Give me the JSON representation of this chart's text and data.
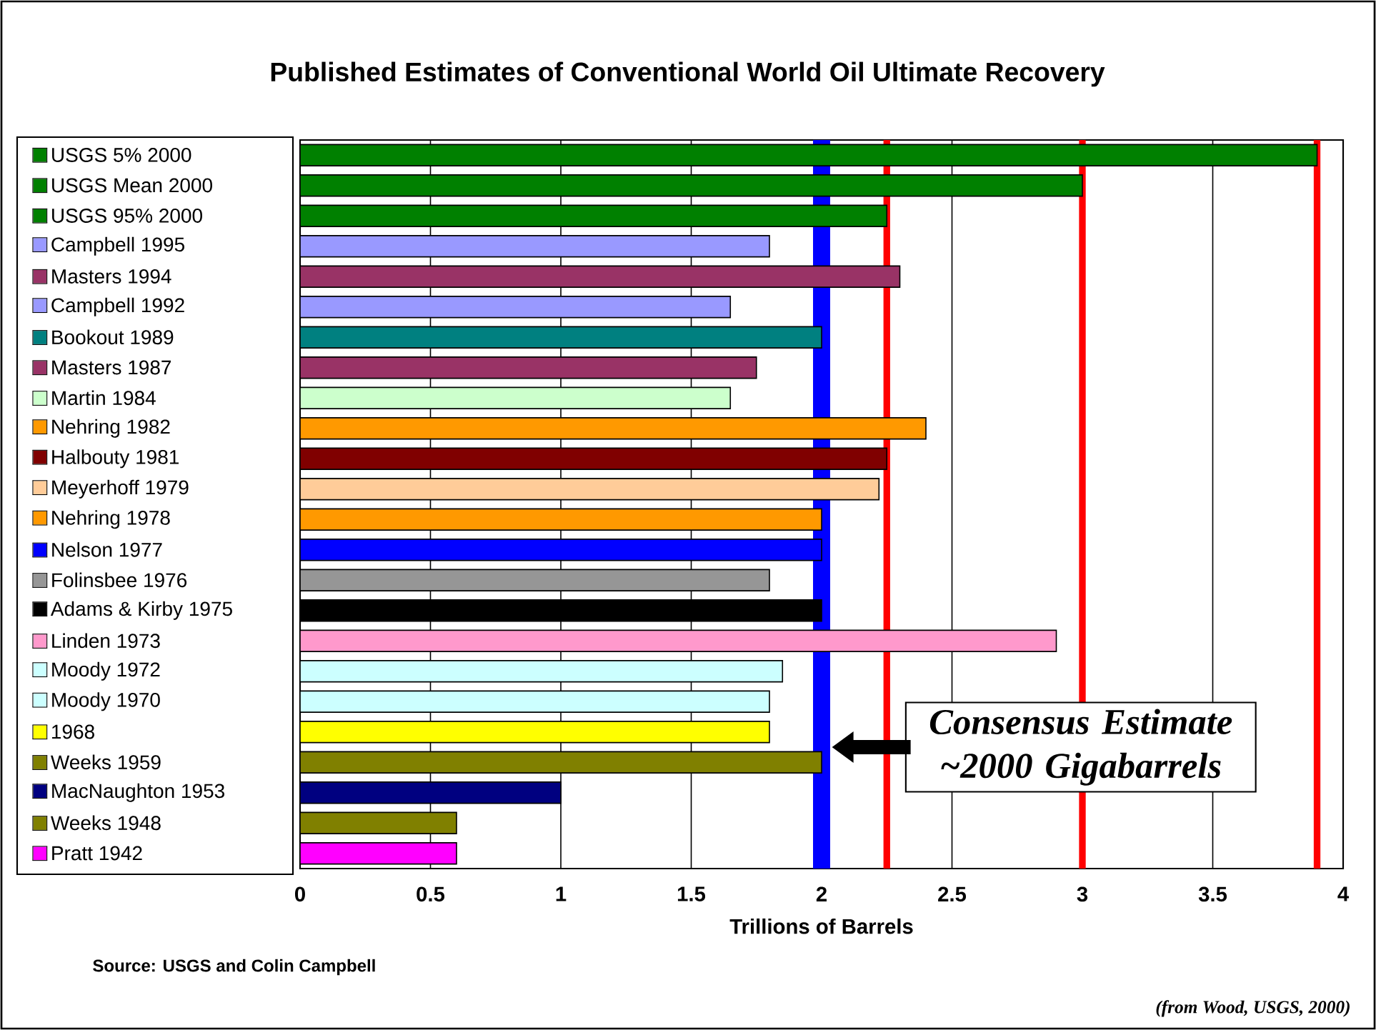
{
  "chart_data": {
    "type": "bar",
    "orientation": "horizontal",
    "title": "Published Estimates of Conventional World Oil Ultimate Recovery",
    "xlabel": "Trillions of Barrels",
    "categories": [
      "USGS 5% 2000",
      "USGS Mean 2000",
      "USGS 95% 2000",
      "Campbell 1995",
      "Masters 1994",
      "Campbell 1992",
      "Bookout 1989",
      "Masters 1987",
      "Martin 1984",
      "Nehring 1982",
      "Halbouty 1981",
      "Meyerhoff 1979",
      "Nehring 1978",
      "Nelson 1977",
      "Folinsbee 1976",
      "Adams & Kirby 1975",
      "Linden 1973",
      "Moody 1972",
      "Moody 1970",
      "1968",
      "Weeks 1959",
      "MacNaughton 1953",
      "Weeks 1948",
      "Pratt 1942"
    ],
    "values": [
      3.9,
      3.0,
      2.25,
      1.8,
      2.3,
      1.65,
      2.0,
      1.75,
      1.65,
      2.4,
      2.25,
      2.22,
      2.0,
      2.0,
      1.8,
      2.0,
      2.9,
      1.85,
      1.8,
      1.8,
      2.0,
      1.0,
      0.6,
      0.6
    ],
    "colors": [
      "#008000",
      "#008000",
      "#008000",
      "#9999ff",
      "#993366",
      "#9999ff",
      "#008080",
      "#993366",
      "#ccffcc",
      "#ff9900",
      "#800000",
      "#ffcc99",
      "#ff9900",
      "#0000ff",
      "#969696",
      "#000000",
      "#ff99cc",
      "#ccffff",
      "#ccffff",
      "#ffff00",
      "#808000",
      "#000080",
      "#808000",
      "#ff00ff"
    ],
    "xlim": [
      0,
      4
    ],
    "xticks": [
      0,
      0.5,
      1,
      1.5,
      2,
      2.5,
      3,
      3.5,
      4
    ],
    "grid": "x",
    "ref_lines": [
      {
        "axis": "x",
        "value": 2.0,
        "color": "#0000ff"
      },
      {
        "axis": "x",
        "value": 2.25,
        "color": "#ff0000"
      },
      {
        "axis": "x",
        "value": 3.0,
        "color": "#ff0000"
      },
      {
        "axis": "x",
        "value": 3.9,
        "color": "#ff0000"
      }
    ],
    "annotations": [
      {
        "text": "Consensus Estimate ~2000 Gigabarrels",
        "x": 2.0
      },
      "Source:  USGS and Colin Campbell",
      "(from Wood, USGS, 2000)"
    ]
  }
}
